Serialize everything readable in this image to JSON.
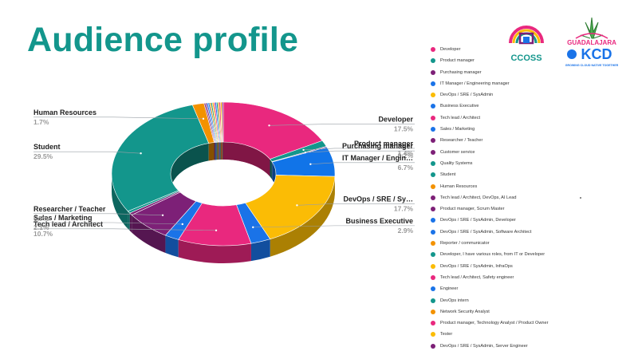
{
  "slide": {
    "title": "Audience profile"
  },
  "logos": {
    "left": {
      "text": "CCOSS"
    },
    "right": {
      "city": "GUADALAJARA",
      "brand": "KCD",
      "tagline": "GROWING CLOUD NATIVE TOGETHER"
    }
  },
  "chart_data": {
    "type": "pie",
    "donut": true,
    "title": "",
    "slices": [
      {
        "name": "Developer",
        "value": 17.5,
        "color": "#e9287e",
        "label": "Developer",
        "pct": "17.5%"
      },
      {
        "name": "Product manager",
        "value": 1.4,
        "color": "#13968c",
        "label": "Product manager",
        "pct": "1.4%"
      },
      {
        "name": "Purchasing manager",
        "value": 0.2,
        "color": "#7d2077",
        "label": "Purchasing manager",
        "pct": "0.2%"
      },
      {
        "name": "IT Manager / Engineering manager",
        "value": 6.7,
        "color": "#1174e8",
        "label": "IT Manager / Engin…",
        "pct": "6.7%"
      },
      {
        "name": "DevOps / SRE / SysAdmin",
        "value": 17.7,
        "color": "#fbbc05",
        "label": "DevOps / SRE / Sy…",
        "pct": "17.7%"
      },
      {
        "name": "Business Executive",
        "value": 2.9,
        "color": "#1a73e8",
        "label": "Business Executive",
        "pct": "2.9%"
      },
      {
        "name": "Tech lead / Architect",
        "value": 10.7,
        "color": "#e9287e",
        "label": "Tech lead / Architect",
        "pct": "10.7%"
      },
      {
        "name": "Sales / Marketing",
        "value": 2.1,
        "color": "#1a73e8",
        "label": "Sales / Marketing",
        "pct": "2.1%"
      },
      {
        "name": "Researcher / Teacher",
        "value": 6.7,
        "color": "#7d2077",
        "label": "Researcher / Teacher",
        "pct": "6.7%"
      },
      {
        "name": "Customer service",
        "value": 0.5,
        "color": "#7d2077"
      },
      {
        "name": "Quality Systems",
        "value": 0.5,
        "color": "#13968c"
      },
      {
        "name": "Student",
        "value": 29.5,
        "color": "#13968c",
        "label": "Student",
        "pct": "29.5%"
      },
      {
        "name": "Human Resources",
        "value": 1.7,
        "color": "#f39200",
        "label": "Human Resources",
        "pct": "1.7%"
      },
      {
        "name": "Tech lead / Architect, DevOps, AI Lead",
        "value": 0.2,
        "color": "#7d2077"
      },
      {
        "name": "Product manager, Scrum Master",
        "value": 0.2,
        "color": "#7d2077"
      },
      {
        "name": "DevOps / SRE / SysAdmin, Developer",
        "value": 0.2,
        "color": "#1a73e8"
      },
      {
        "name": "DevOps / SRE / SysAdmin, Software Architect",
        "value": 0.2,
        "color": "#1a73e8"
      },
      {
        "name": "Reporter / communicator",
        "value": 0.2,
        "color": "#f39200"
      },
      {
        "name": "Developer, I have various roles, from IT or Developer",
        "value": 0.2,
        "color": "#13968c"
      },
      {
        "name": "DevOps / SRE / SysAdmin, InfraOps",
        "value": 0.2,
        "color": "#fbbc05"
      },
      {
        "name": "Tech lead / Architect, Safety engineer",
        "value": 0.2,
        "color": "#e9287e"
      },
      {
        "name": "Engineer",
        "value": 0.2,
        "color": "#1a73e8"
      },
      {
        "name": "DevOps intern",
        "value": 0.2,
        "color": "#13968c"
      },
      {
        "name": "Network Security Analyst",
        "value": 0.2,
        "color": "#f39200"
      },
      {
        "name": "Product manager, Technology Analyst / Product Owner",
        "value": 0.2,
        "color": "#e9287e"
      },
      {
        "name": "Tester",
        "value": 0.2,
        "color": "#fbbc05"
      },
      {
        "name": "DevOps / SRE / SysAdmin, Server Engineer",
        "value": 0.2,
        "color": "#7d2077"
      }
    ],
    "legend": [
      {
        "label": "Developer",
        "color": "#e9287e"
      },
      {
        "label": "Product manager",
        "color": "#13968c"
      },
      {
        "label": "Purchasing manager",
        "color": "#7d2077"
      },
      {
        "label": "IT Manager / Engineering manager",
        "color": "#1a73e8"
      },
      {
        "label": "DevOps / SRE / SysAdmin",
        "color": "#fbbc05"
      },
      {
        "label": "Business Executive",
        "color": "#1a73e8"
      },
      {
        "label": "Tech lead / Architect",
        "color": "#e9287e"
      },
      {
        "label": "Sales / Marketing",
        "color": "#1a73e8"
      },
      {
        "label": "Researcher / Teacher",
        "color": "#7d2077"
      },
      {
        "label": "Customer service",
        "color": "#7d2077"
      },
      {
        "label": "Quality Systems",
        "color": "#13968c"
      },
      {
        "label": "Student",
        "color": "#13968c"
      },
      {
        "label": "Human Resources",
        "color": "#f39200"
      },
      {
        "label": "Tech lead / Architect, DevOps, AI Lead",
        "color": "#7d2077"
      },
      {
        "label": "Product manager, Scrum Master",
        "color": "#7d2077"
      },
      {
        "label": "DevOps / SRE / SysAdmin, Developer",
        "color": "#1a73e8"
      },
      {
        "label": "DevOps / SRE / SysAdmin, Software Architect",
        "color": "#1a73e8"
      },
      {
        "label": "Reporter / communicator",
        "color": "#f39200"
      },
      {
        "label": "Developer, I have various roles, from IT or Developer",
        "color": "#13968c"
      },
      {
        "label": "DevOps / SRE / SysAdmin, InfraOps",
        "color": "#fbbc05"
      },
      {
        "label": "Tech lead / Architect, Safety engineer",
        "color": "#e9287e"
      },
      {
        "label": "Engineer",
        "color": "#1a73e8"
      },
      {
        "label": "DevOps intern",
        "color": "#13968c"
      },
      {
        "label": "Network Security Analyst",
        "color": "#f39200"
      },
      {
        "label": "Product manager, Technology Analyst / Product Owner",
        "color": "#e9287e"
      },
      {
        "label": "Tester",
        "color": "#fbbc05"
      },
      {
        "label": "DevOps / SRE / SysAdmin, Server Engineer",
        "color": "#7d2077"
      }
    ],
    "legend_position": "right"
  }
}
